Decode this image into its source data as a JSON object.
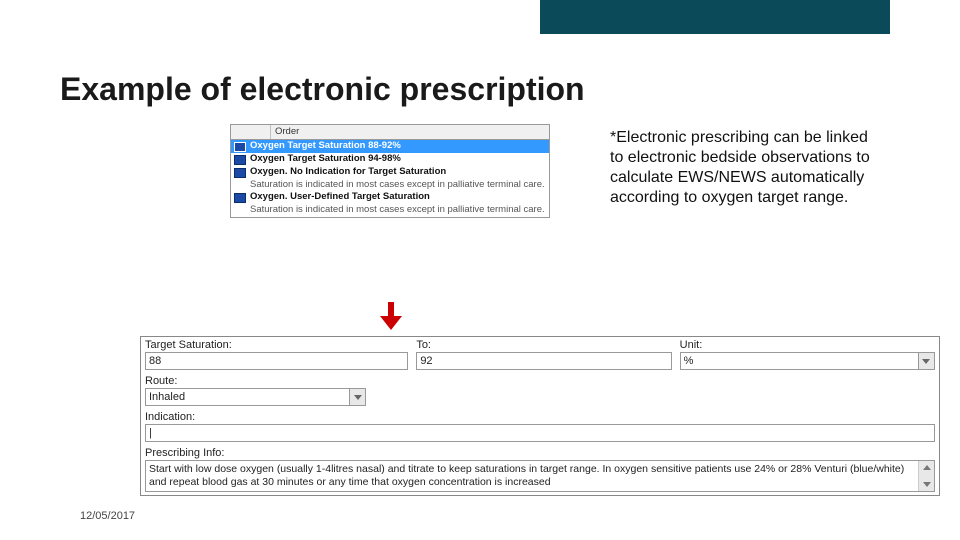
{
  "colors": {
    "brand_bar": "#0b4a58",
    "arrow": "#cc0000",
    "selection": "#3399ff",
    "text": "#111111",
    "border": "#999999",
    "field_bg": "#ffffff",
    "btn_bg": "#e8e8e8"
  },
  "title": "Example of electronic prescription",
  "side_note": "*Electronic prescribing can be linked to electronic bedside observations to calculate EWS/NEWS automatically according to oxygen target range.",
  "footer_date": "12/05/2017",
  "order_list": {
    "header": "Order",
    "items": [
      {
        "label": "Oxygen Target Saturation 88-92%",
        "selected": true
      },
      {
        "label": "Oxygen Target Saturation 94-98%",
        "selected": false
      },
      {
        "label": "Oxygen. No Indication for Target Saturation",
        "selected": false,
        "note": "Saturation is indicated in most cases except in palliative terminal care."
      },
      {
        "label": "Oxygen. User-Defined Target Saturation",
        "selected": false,
        "note": "Saturation is indicated in most cases except in palliative terminal care."
      }
    ]
  },
  "form": {
    "row1": [
      {
        "label": "Target Saturation:",
        "value": "88",
        "width": "34%",
        "dropdown": false
      },
      {
        "label": "To:",
        "value": "92",
        "width": "33%",
        "dropdown": false
      },
      {
        "label": "Unit:",
        "value": "%",
        "width": "33%",
        "dropdown": true
      }
    ],
    "route": {
      "label": "Route:",
      "value": "Inhaled",
      "width_pct": 28
    },
    "indication": {
      "label": "Indication:",
      "value": "|"
    },
    "prescribing_info": {
      "label": "Prescribing Info:",
      "text": "Start with low dose oxygen (usually 1-4litres nasal) and titrate to keep saturations in target range. In oxygen sensitive patients use 24% or 28% Venturi (blue/white) and repeat blood gas at 30 minutes or any time that oxygen concentration is increased"
    }
  }
}
